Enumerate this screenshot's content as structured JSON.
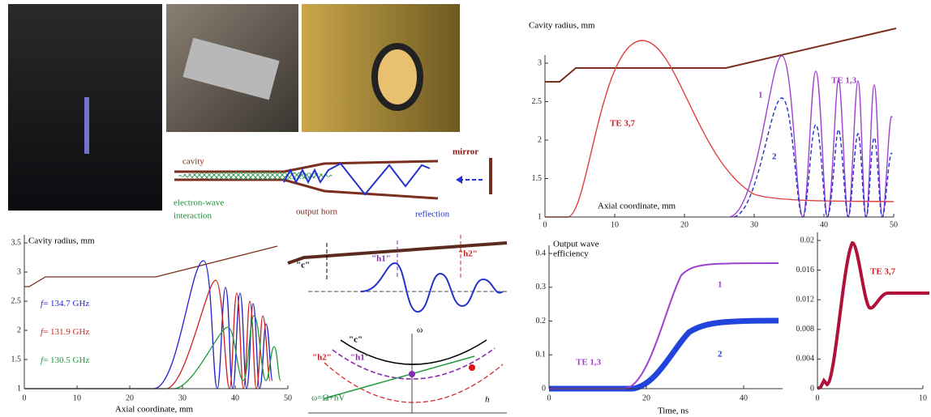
{
  "diagram": {
    "cavity": "cavity",
    "mirror": "mirror",
    "interaction_1": "electron-wave",
    "interaction_2": "interaction",
    "horn": "output horn",
    "reflection": "reflection"
  },
  "chart_a": {
    "y_label": "Cavity radius, mm",
    "x_label": "Axial coordinate, mm",
    "xlim": [
      0,
      50
    ],
    "ylim": [
      1,
      3.5
    ],
    "xticks": [
      0,
      10,
      20,
      30,
      40,
      50
    ],
    "yticks": [
      1,
      1.5,
      2,
      2.5,
      3,
      3.5
    ],
    "legend": [
      {
        "symbol": "f",
        "text": "= 134.7 GHz",
        "color": "#1f1fd0"
      },
      {
        "symbol": "f",
        "text": "= 131.9 GHz",
        "color": "#d01f1f"
      },
      {
        "symbol": "f",
        "text": "= 130.5 GHz",
        "color": "#1f9a3a"
      }
    ]
  },
  "dispersion": {
    "c_top": "\"c\"",
    "h1_top": "\"h1\"",
    "h2_top": "\"h2\"",
    "c_bottom": "\"c\"",
    "h1_bottom": "\"h1\"",
    "h2_bottom": "\"h2\"",
    "omega": "ω",
    "h": "h",
    "relation": "ω=Ω+hV"
  },
  "chart_b": {
    "y_label": "Cavity radius, mm",
    "x_label": "Axial coordinate, mm",
    "xlim": [
      0,
      50
    ],
    "ylim": [
      1,
      3
    ],
    "xticks": [
      0,
      10,
      20,
      30,
      40,
      50
    ],
    "yticks": [
      1,
      1.5,
      2,
      2.5,
      3
    ],
    "mode_a": "TE 3,7",
    "mode_b": "TE 1,3",
    "curve_1": "1",
    "curve_2": "2"
  },
  "chart_c": {
    "title_1": "Output wave",
    "title_2": "efficiency",
    "x_label": "Time, ns",
    "xlim": [
      0,
      48
    ],
    "ylim": [
      0,
      0.4
    ],
    "xticks": [
      0,
      20,
      40
    ],
    "yticks": [
      0,
      0.1,
      0.2,
      0.3,
      0.4
    ],
    "mode": "TE 1,3",
    "curve_1": "1",
    "curve_2": "2"
  },
  "chart_d": {
    "xlim": [
      0,
      10
    ],
    "ylim": [
      0,
      0.02
    ],
    "xticks": [
      0,
      10
    ],
    "yticks": [
      0,
      0.004,
      0.008,
      0.012,
      0.016,
      0.02
    ],
    "mode": "TE 3,7"
  }
}
